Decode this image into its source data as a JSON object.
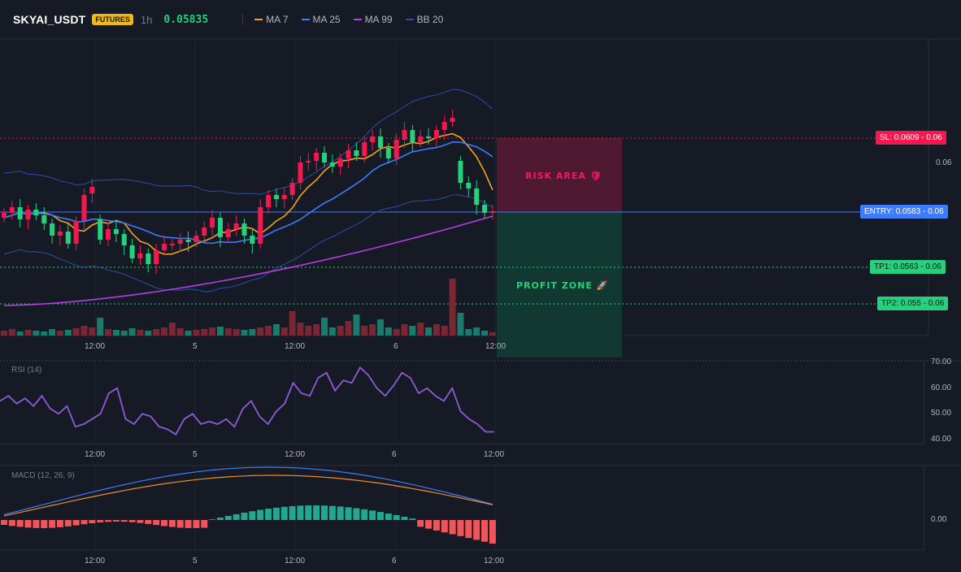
{
  "header": {
    "symbol": "SKYAI_USDT",
    "badge": "FUTURES",
    "timeframe": "1h",
    "price": "0.05835",
    "indicators": [
      {
        "label": "MA 7",
        "color": "#f7a21b"
      },
      {
        "label": "MA 25",
        "color": "#3d7bff"
      },
      {
        "label": "MA 99",
        "color": "#b63de0"
      },
      {
        "label": "BB 20",
        "color": "#2e4ea8"
      }
    ]
  },
  "colors": {
    "bull": "#26d07c",
    "bear": "#f5184f",
    "bull_vol": "#1a7a6b",
    "bear_vol": "#7a2633",
    "background": "#161a25"
  },
  "levels": {
    "sl": "SL: 0.0609 - 0.06",
    "entry": "ENTRY: 0.0583 - 0.06",
    "tp1": "TP1: 0.0563 - 0.06",
    "tp2": "TP2: 0.055 - 0.06"
  },
  "zones": {
    "risk": "RISK AREA 🛡",
    "profit": "PROFIT ZONE 🚀"
  },
  "price_axis": {
    "tick": "0.06"
  },
  "time_axis": [
    "12:00",
    "5",
    "12:00",
    "6",
    "12:00"
  ],
  "rsi": {
    "label": "RSI (14)",
    "ticks": [
      "70.00",
      "60.00",
      "50.00",
      "40.00"
    ],
    "values": [
      55,
      57,
      54,
      56,
      53,
      57,
      52,
      50,
      53,
      45,
      46,
      48,
      50,
      58,
      60,
      48,
      46,
      50,
      49,
      45,
      44,
      42,
      48,
      50,
      46,
      47,
      46,
      48,
      45,
      52,
      55,
      49,
      46,
      51,
      54,
      62,
      58,
      57,
      64,
      66,
      59,
      63,
      62,
      68,
      65,
      60,
      57,
      61,
      66,
      64,
      58,
      60,
      57,
      55,
      60,
      51,
      48,
      46,
      43,
      43
    ]
  },
  "macd": {
    "label": "MACD (12, 26, 9)",
    "tick": "0.00"
  }
}
